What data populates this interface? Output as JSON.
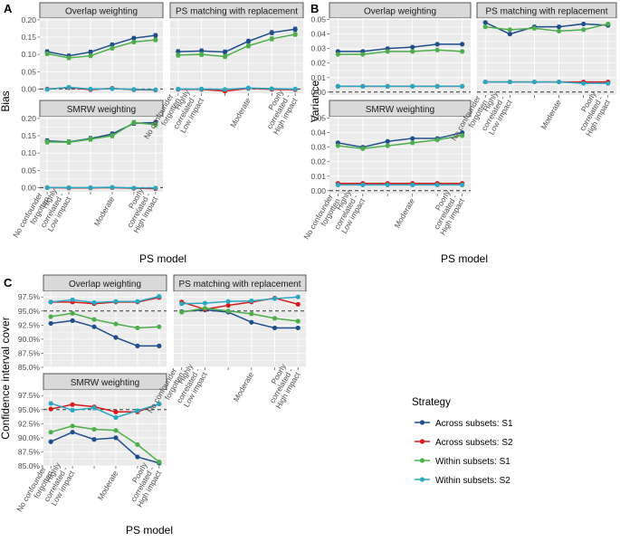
{
  "colors": {
    "panel_bg": "#ebebeb",
    "grid": "#ffffff",
    "strip_bg": "#d9d9d9",
    "strip_border": "#333333",
    "ref_line": "#333333",
    "series": [
      "#1f4e8c",
      "#d7191c",
      "#4daf4a",
      "#2aa7c2"
    ]
  },
  "categories": [
    "No confounder\nforgotten",
    "Highly\ncorrelated -\nLow impact",
    "",
    "Moderate",
    "",
    "Poorly\ncorrelated -\nHigh impact"
  ],
  "legend": {
    "title": "Strategy",
    "entries": [
      "Across subsets: S1",
      "Across subsets: S2",
      "Within subsets: S1",
      "Within subsets: S2"
    ]
  },
  "chart_data": [
    {
      "letter": "A",
      "type": "line",
      "xlabel": "PS model",
      "ylabel": "Bias",
      "ylim": [
        -0.012,
        0.205
      ],
      "yticks": [
        "0.00",
        "0.05",
        "0.10",
        "0.15",
        "0.20"
      ],
      "ytick_values": [
        0,
        0.05,
        0.1,
        0.15,
        0.2
      ],
      "ref": 0,
      "panels": [
        {
          "title": "Overlap weighting",
          "series": [
            {
              "name": "Across subsets: S1",
              "values": [
                0.108,
                0.096,
                0.107,
                0.128,
                0.147,
                0.155
              ],
              "err": 0.005
            },
            {
              "name": "Across subsets: S2",
              "values": [
                0.0,
                0.004,
                -0.002,
                0.002,
                -0.002,
                -0.003
              ],
              "err": 0.002
            },
            {
              "name": "Within subsets: S1",
              "values": [
                0.102,
                0.09,
                0.096,
                0.118,
                0.136,
                0.142
              ],
              "err": 0.005
            },
            {
              "name": "Within subsets: S2",
              "values": [
                -0.001,
                0.005,
                0.0,
                0.001,
                -0.001,
                -0.002
              ],
              "err": 0.002
            }
          ]
        },
        {
          "title": "PS matching with replacement",
          "series": [
            {
              "name": "Across subsets: S1",
              "values": [
                0.108,
                0.11,
                0.107,
                0.138,
                0.163,
                0.173
              ],
              "err": 0.006
            },
            {
              "name": "Across subsets: S2",
              "values": [
                -0.001,
                -0.001,
                -0.006,
                0.002,
                -0.001,
                -0.002
              ],
              "err": 0.002
            },
            {
              "name": "Within subsets: S1",
              "values": [
                0.098,
                0.1,
                0.094,
                0.125,
                0.145,
                0.158
              ],
              "err": 0.006
            },
            {
              "name": "Within subsets: S2",
              "values": [
                0.0,
                0.0,
                -0.001,
                0.003,
                0.001,
                0.0
              ],
              "err": 0.002
            }
          ]
        },
        {
          "title": "SMRW weighting",
          "series": [
            {
              "name": "Across subsets: S1",
              "values": [
                0.135,
                0.132,
                0.142,
                0.155,
                0.186,
                0.188
              ],
              "err": 0.006
            },
            {
              "name": "Across subsets: S2",
              "values": [
                0.0,
                -0.001,
                -0.001,
                0.0,
                -0.002,
                -0.003
              ],
              "err": 0.002
            },
            {
              "name": "Within subsets: S1",
              "values": [
                0.132,
                0.131,
                0.14,
                0.15,
                0.188,
                0.182
              ],
              "err": 0.006
            },
            {
              "name": "Within subsets: S2",
              "values": [
                0.0,
                0.0,
                0.0,
                0.001,
                -0.001,
                -0.001
              ],
              "err": 0.002
            }
          ]
        }
      ]
    },
    {
      "letter": "B",
      "type": "line",
      "xlabel": "PS model",
      "ylabel": "Variance",
      "ylim": [
        -0.002,
        0.051
      ],
      "yticks": [
        "0.00",
        "0.01",
        "0.02",
        "0.03",
        "0.04",
        "0.05"
      ],
      "ytick_values": [
        0,
        0.01,
        0.02,
        0.03,
        0.04,
        0.05
      ],
      "ref": 0,
      "panels": [
        {
          "title": "Overlap weighting",
          "series": [
            {
              "name": "Across subsets: S1",
              "values": [
                0.028,
                0.028,
                0.03,
                0.031,
                0.033,
                0.033
              ]
            },
            {
              "name": "Across subsets: S2",
              "values": [
                0.004,
                0.004,
                0.004,
                0.004,
                0.004,
                0.004
              ]
            },
            {
              "name": "Within subsets: S1",
              "values": [
                0.026,
                0.026,
                0.028,
                0.028,
                0.029,
                0.028
              ]
            },
            {
              "name": "Within subsets: S2",
              "values": [
                0.004,
                0.004,
                0.004,
                0.004,
                0.004,
                0.004
              ]
            }
          ]
        },
        {
          "title": "PS matching with replacement",
          "series": [
            {
              "name": "Across subsets: S1",
              "values": [
                0.048,
                0.04,
                0.045,
                0.045,
                0.047,
                0.046
              ]
            },
            {
              "name": "Across subsets: S2",
              "values": [
                0.007,
                0.007,
                0.007,
                0.007,
                0.007,
                0.007
              ]
            },
            {
              "name": "Within subsets: S1",
              "values": [
                0.045,
                0.043,
                0.044,
                0.042,
                0.043,
                0.047
              ]
            },
            {
              "name": "Within subsets: S2",
              "values": [
                0.007,
                0.007,
                0.007,
                0.007,
                0.006,
                0.006
              ]
            }
          ]
        },
        {
          "title": "SMRW weighting",
          "series": [
            {
              "name": "Across subsets: S1",
              "values": [
                0.033,
                0.03,
                0.034,
                0.036,
                0.036,
                0.04
              ]
            },
            {
              "name": "Across subsets: S2",
              "values": [
                0.005,
                0.005,
                0.005,
                0.005,
                0.005,
                0.005
              ]
            },
            {
              "name": "Within subsets: S1",
              "values": [
                0.031,
                0.029,
                0.031,
                0.033,
                0.035,
                0.038
              ]
            },
            {
              "name": "Within subsets: S2",
              "values": [
                0.004,
                0.004,
                0.004,
                0.004,
                0.004,
                0.004
              ]
            }
          ]
        }
      ]
    },
    {
      "letter": "C",
      "type": "line",
      "xlabel": "PS model",
      "ylabel": "Confidence interval cover",
      "ylim": [
        0.85,
        0.985
      ],
      "yticks": [
        "85.0%",
        "87.5%",
        "90.0%",
        "92.5%",
        "95.0%",
        "97.5%"
      ],
      "ytick_values": [
        0.85,
        0.875,
        0.9,
        0.925,
        0.95,
        0.975
      ],
      "ref": 0.95,
      "panels": [
        {
          "title": "Overlap weighting",
          "series": [
            {
              "name": "Across subsets: S1",
              "values": [
                0.928,
                0.933,
                0.922,
                0.903,
                0.888,
                0.888
              ]
            },
            {
              "name": "Across subsets: S2",
              "values": [
                0.966,
                0.966,
                0.963,
                0.966,
                0.966,
                0.974
              ]
            },
            {
              "name": "Within subsets: S1",
              "values": [
                0.94,
                0.946,
                0.935,
                0.927,
                0.92,
                0.922
              ]
            },
            {
              "name": "Within subsets: S2",
              "values": [
                0.966,
                0.97,
                0.965,
                0.967,
                0.967,
                0.976
              ]
            }
          ]
        },
        {
          "title": "PS matching with replacement",
          "series": [
            {
              "name": "Across subsets: S1",
              "values": [
                0.949,
                0.952,
                0.948,
                0.93,
                0.92,
                0.92
              ]
            },
            {
              "name": "Across subsets: S2",
              "values": [
                0.966,
                0.953,
                0.96,
                0.966,
                0.973,
                0.962
              ]
            },
            {
              "name": "Within subsets: S1",
              "values": [
                0.948,
                0.955,
                0.95,
                0.945,
                0.937,
                0.932
              ]
            },
            {
              "name": "Within subsets: S2",
              "values": [
                0.963,
                0.964,
                0.967,
                0.968,
                0.972,
                0.975
              ]
            }
          ]
        },
        {
          "title": "SMRW weighting",
          "series": [
            {
              "name": "Across subsets: S1",
              "values": [
                0.893,
                0.91,
                0.897,
                0.9,
                0.866,
                0.855
              ]
            },
            {
              "name": "Across subsets: S2",
              "values": [
                0.951,
                0.959,
                0.955,
                0.946,
                0.946,
                0.96
              ]
            },
            {
              "name": "Within subsets: S1",
              "values": [
                0.91,
                0.921,
                0.915,
                0.913,
                0.888,
                0.857
              ]
            },
            {
              "name": "Within subsets: S2",
              "values": [
                0.961,
                0.949,
                0.953,
                0.936,
                0.948,
                0.96
              ]
            }
          ]
        }
      ]
    }
  ]
}
